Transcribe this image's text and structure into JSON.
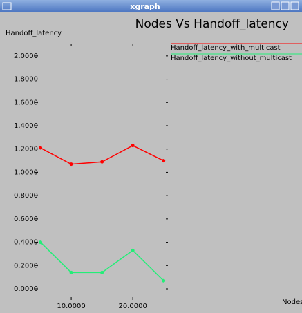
{
  "window": {
    "title": "xgraph"
  },
  "chart_data": {
    "type": "line",
    "title": "Nodes Vs Handoff_latency",
    "y_label": "Handoff_latency",
    "x_label": "Nodes",
    "x": [
      5,
      10,
      15,
      20,
      25
    ],
    "series": [
      {
        "name": "Handoff_latency_with_multicast",
        "color": "#ff0000",
        "values": [
          1.21,
          1.07,
          1.09,
          1.23,
          1.1
        ]
      },
      {
        "name": "Handoff_latency_without_multicast",
        "color": "#22ee77",
        "values": [
          0.4,
          0.14,
          0.14,
          0.33,
          0.07
        ]
      }
    ],
    "xlim": [
      4.6,
      25.6
    ],
    "xticks": [
      {
        "value": 10,
        "label": "10.0000"
      },
      {
        "value": 20,
        "label": "20.0000"
      }
    ],
    "ylim": [
      0,
      2.1
    ],
    "yticks": [
      {
        "value": 0,
        "label": "0.0000"
      },
      {
        "value": 0.2,
        "label": "0.2000"
      },
      {
        "value": 0.4,
        "label": "0.4000"
      },
      {
        "value": 0.6,
        "label": "0.6000"
      },
      {
        "value": 0.8,
        "label": "0.8000"
      },
      {
        "value": 1.0,
        "label": "1.0000"
      },
      {
        "value": 1.2,
        "label": "1.2000"
      },
      {
        "value": 1.4,
        "label": "1.4000"
      },
      {
        "value": 1.6,
        "label": "1.6000"
      },
      {
        "value": 1.8,
        "label": "1.8000"
      },
      {
        "value": 2.0,
        "label": "2.0000"
      }
    ],
    "legend": "top-right"
  }
}
